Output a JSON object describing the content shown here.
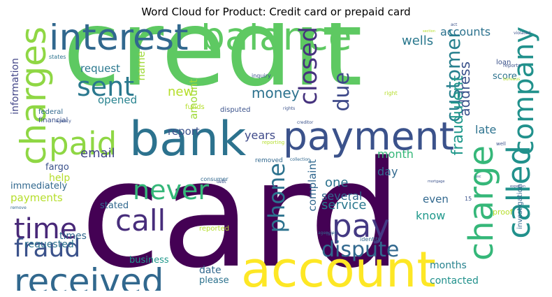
{
  "title": "Word Cloud for Product: Credit card or prepaid card",
  "words": [
    {
      "text": "credit",
      "color": "#5ec962"
    },
    {
      "text": "card",
      "color": "#440154"
    },
    {
      "text": "bank",
      "color": "#2c728e"
    },
    {
      "text": "account",
      "color": "#fde725"
    },
    {
      "text": "payment",
      "color": "#3b528b"
    },
    {
      "text": "balance",
      "color": "#5ec962"
    },
    {
      "text": "interest",
      "color": "#31688e"
    },
    {
      "text": "received",
      "color": "#31688e"
    },
    {
      "text": "charges",
      "color": "#8fd744"
    },
    {
      "text": "charge",
      "color": "#35b779"
    },
    {
      "text": "called",
      "color": "#21918c"
    },
    {
      "text": "company",
      "color": "#21918c"
    },
    {
      "text": "paid",
      "color": "#8fd744"
    },
    {
      "text": "pay",
      "color": "#443983"
    },
    {
      "text": "call",
      "color": "#472d7b"
    },
    {
      "text": "never",
      "color": "#35b779"
    },
    {
      "text": "time",
      "color": "#482878"
    },
    {
      "text": "fraud",
      "color": "#3b528b"
    },
    {
      "text": "sent",
      "color": "#2a788e"
    },
    {
      "text": "closed",
      "color": "#46337e"
    },
    {
      "text": "phone",
      "color": "#2c728e"
    },
    {
      "text": "dispute",
      "color": "#31688e"
    },
    {
      "text": "due",
      "color": "#3e4989"
    },
    {
      "text": "customer",
      "color": "#27808e"
    },
    {
      "text": "fraudulent",
      "color": "#1f988b"
    },
    {
      "text": "address",
      "color": "#3b528b"
    },
    {
      "text": "money",
      "color": "#2c728e"
    },
    {
      "text": "wells",
      "color": "#2a788e"
    },
    {
      "text": "accounts",
      "color": "#2c728e"
    },
    {
      "text": "email",
      "color": "#414487"
    },
    {
      "text": "years",
      "color": "#3e4989"
    },
    {
      "text": "report",
      "color": "#3b528b"
    },
    {
      "text": "new",
      "color": "#b5de2b"
    },
    {
      "text": "amount",
      "color": "#a0da39"
    },
    {
      "text": "opened",
      "color": "#26828e"
    },
    {
      "text": "request",
      "color": "#2a788e"
    },
    {
      "text": "name",
      "color": "#a0da39"
    },
    {
      "text": "information",
      "color": "#414487"
    },
    {
      "text": "month",
      "color": "#35b779"
    },
    {
      "text": "day",
      "color": "#31688e"
    },
    {
      "text": "one",
      "color": "#2c728e"
    },
    {
      "text": "several",
      "color": "#31688e"
    },
    {
      "text": "service",
      "color": "#2a788e"
    },
    {
      "text": "complaint",
      "color": "#31688e"
    },
    {
      "text": "even",
      "color": "#31688e"
    },
    {
      "text": "know",
      "color": "#1f988b"
    },
    {
      "text": "late",
      "color": "#2c728e"
    },
    {
      "text": "score",
      "color": "#2c728e"
    },
    {
      "text": "loan",
      "color": "#3b528b"
    },
    {
      "text": "payments",
      "color": "#b5de2b"
    },
    {
      "text": "help",
      "color": "#b5de2b"
    },
    {
      "text": "fargo",
      "color": "#3b528b"
    },
    {
      "text": "times",
      "color": "#31688e"
    },
    {
      "text": "stated",
      "color": "#31688e"
    },
    {
      "text": "requested",
      "color": "#2c728e"
    },
    {
      "text": "business",
      "color": "#1f988b"
    },
    {
      "text": "date",
      "color": "#31688e"
    },
    {
      "text": "please",
      "color": "#2c728e"
    },
    {
      "text": "months",
      "color": "#26828e"
    },
    {
      "text": "contacted",
      "color": "#21918c"
    },
    {
      "text": "immediately",
      "color": "#31688e"
    },
    {
      "text": "financial",
      "color": "#3b528b"
    },
    {
      "text": "federal",
      "color": "#31688e"
    },
    {
      "text": "agency",
      "color": "#3b528b"
    },
    {
      "text": "states",
      "color": "#2c728e"
    },
    {
      "text": "remove",
      "color": "#31688e"
    },
    {
      "text": "funds",
      "color": "#b5de2b"
    },
    {
      "text": "disputed",
      "color": "#3b528b"
    },
    {
      "text": "reporting",
      "color": "#b5de2b"
    },
    {
      "text": "removed",
      "color": "#31688e"
    },
    {
      "text": "collection",
      "color": "#31688e"
    },
    {
      "text": "consumer",
      "color": "#31688e"
    },
    {
      "text": "debt",
      "color": "#3b528b"
    },
    {
      "text": "reported",
      "color": "#b5de2b"
    },
    {
      "text": "agencies",
      "color": "#31688e"
    },
    {
      "text": "identity",
      "color": "#31688e"
    },
    {
      "text": "fair",
      "color": "#3b528b"
    },
    {
      "text": "inquiry",
      "color": "#3b528b"
    },
    {
      "text": "rights",
      "color": "#3b528b"
    },
    {
      "text": "creditor",
      "color": "#3b528b"
    },
    {
      "text": "right",
      "color": "#b5de2b"
    },
    {
      "text": "act",
      "color": "#3b528b"
    },
    {
      "text": "section",
      "color": "#b5de2b"
    },
    {
      "text": "violated",
      "color": "#3b528b"
    },
    {
      "text": "reports",
      "color": "#3b528b"
    },
    {
      "text": "bureaus",
      "color": "#b5de2b"
    },
    {
      "text": "well",
      "color": "#3b528b"
    },
    {
      "text": "investigation",
      "color": "#31688e"
    },
    {
      "text": "proof",
      "color": "#b5de2b"
    },
    {
      "text": "mortgage",
      "color": "#3b528b"
    },
    {
      "text": "experian",
      "color": "#3b528b"
    },
    {
      "text": "usc",
      "color": "#3b528b"
    },
    {
      "text": "15",
      "color": "#3b528b"
    }
  ]
}
